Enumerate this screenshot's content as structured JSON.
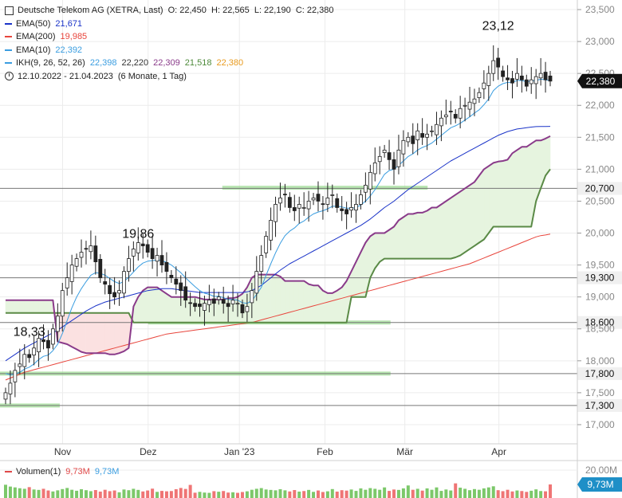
{
  "header": {
    "title": "Deutsche Telekom AG (XETRA, Last)",
    "ohlc": "O: 22,450  H: 22,565  L: 22,190  C: 22,380",
    "indicators": [
      {
        "label": "EMA(50)",
        "values": [
          "21,671"
        ],
        "color": "#1a33c8"
      },
      {
        "label": "EMA(200)",
        "values": [
          "19,985"
        ],
        "color": "#e8453c"
      },
      {
        "label": "EMA(10)",
        "values": [
          "22,392"
        ],
        "color": "#3a9de0"
      },
      {
        "label": "IKH(9, 26, 52, 26)",
        "values": [
          "22,398",
          "22,220",
          "22,309",
          "21,518",
          "22,380"
        ],
        "value_colors": [
          "#3a9de0",
          "#333333",
          "#8a3b8a",
          "#4d8a3a",
          "#e89a1e"
        ],
        "color": "#3a9de0"
      }
    ],
    "period": "12.10.2022 - 21.04.2023",
    "period_note": "(6 Monate, 1 Tag)"
  },
  "volume": {
    "label": "Volumen(1)",
    "values": [
      "9,73M",
      "9,73M"
    ],
    "axis_label": "20,00M",
    "badge": "9,73M",
    "badge_color": "#1e8fc7"
  },
  "chart_data": {
    "type": "candlestick",
    "x_range": [
      "12.10.2022",
      "21.04.2023"
    ],
    "ylim": [
      16.7,
      23.65
    ],
    "y_ticks": [
      "17,000",
      "17,500",
      "18,000",
      "18,500",
      "19,000",
      "19,500",
      "20,000",
      "20,500",
      "21,000",
      "21,500",
      "22,000",
      "22,500",
      "23,000",
      "23,500"
    ],
    "x_ticks": [
      {
        "label": "Nov",
        "date": "2022-11-01"
      },
      {
        "label": "Dez",
        "date": "2022-12-01"
      },
      {
        "label": "Jan '23",
        "date": "2023-01-02"
      },
      {
        "label": "Feb",
        "date": "2023-02-01"
      },
      {
        "label": "Mär",
        "date": "2023-03-01"
      },
      {
        "label": "Apr",
        "date": "2023-04-03"
      }
    ],
    "horizontal_levels": [
      {
        "value": 20.7,
        "label": "20,700"
      },
      {
        "value": 19.3,
        "label": "19,300"
      },
      {
        "value": 18.6,
        "label": "18,600"
      },
      {
        "value": 17.8,
        "label": "17,800"
      },
      {
        "value": 17.3,
        "label": "17,300"
      }
    ],
    "support_zones": [
      {
        "value": 20.71,
        "from": "2022-12-27",
        "to": "2023-03-09"
      },
      {
        "value": 18.6,
        "from": "2022-12-01",
        "to": "2023-02-24"
      },
      {
        "value": 17.8,
        "from": "2022-10-12",
        "to": "2023-02-24"
      },
      {
        "value": 17.3,
        "from": "2022-10-12",
        "to": "2022-10-31"
      }
    ],
    "annotations": [
      {
        "text": "23,12",
        "value": 23.12
      },
      {
        "text": "19,86",
        "value": 19.86
      },
      {
        "text": "18,33",
        "value": 18.33
      }
    ],
    "last_price": {
      "value": 22.38,
      "label": "22,380"
    },
    "series": [
      {
        "name": "Kurs",
        "type": "candlestick",
        "close": [
          17.5,
          17.65,
          17.85,
          17.95,
          18.1,
          18.05,
          18.2,
          18.35,
          18.3,
          18.2,
          18.5,
          18.7,
          19.1,
          19.3,
          19.5,
          19.6,
          19.7,
          19.75,
          19.8,
          19.55,
          19.3,
          19.2,
          19.05,
          19.0,
          19.1,
          19.4,
          19.6,
          19.75,
          19.85,
          19.8,
          19.7,
          19.6,
          19.65,
          19.5,
          19.4,
          19.3,
          19.2,
          19.1,
          18.95,
          18.9,
          18.85,
          18.85,
          18.9,
          18.95,
          18.9,
          19.0,
          18.9,
          18.85,
          18.95,
          18.9,
          18.75,
          18.85,
          19.1,
          19.4,
          19.65,
          19.95,
          20.2,
          20.45,
          20.55,
          20.6,
          20.4,
          20.35,
          20.45,
          20.4,
          20.5,
          20.55,
          20.5,
          20.45,
          20.55,
          20.6,
          20.4,
          20.35,
          20.3,
          20.4,
          20.45,
          20.6,
          20.75,
          20.95,
          21.1,
          21.2,
          21.3,
          21.15,
          21.0,
          21.3,
          21.45,
          21.5,
          21.4,
          21.6,
          21.5,
          21.55,
          21.6,
          21.7,
          21.8,
          21.85,
          21.9,
          21.8,
          21.95,
          22.0,
          22.05,
          22.1,
          22.2,
          22.35,
          22.5,
          22.7,
          22.6,
          22.45,
          22.4,
          22.35,
          22.5,
          22.4,
          22.3,
          22.4,
          22.45,
          22.5,
          22.4,
          22.38
        ]
      },
      {
        "name": "EMA(10)",
        "values": [
          17.8,
          17.78,
          17.79,
          17.82,
          17.87,
          17.9,
          17.95,
          18.02,
          18.07,
          18.09,
          18.16,
          18.26,
          18.43,
          18.63,
          18.83,
          19.0,
          19.13,
          19.24,
          19.34,
          19.38,
          19.37,
          19.34,
          19.29,
          19.24,
          19.21,
          19.24,
          19.31,
          19.39,
          19.47,
          19.53,
          19.56,
          19.57,
          19.58,
          19.57,
          19.54,
          19.5,
          19.44,
          19.38,
          19.3,
          19.23,
          19.16,
          19.1,
          19.06,
          19.04,
          19.01,
          19.01,
          18.99,
          18.96,
          18.96,
          18.95,
          18.91,
          18.9,
          18.94,
          19.04,
          19.15,
          19.34,
          19.52,
          19.69,
          19.84,
          19.96,
          20.03,
          20.08,
          20.15,
          20.19,
          20.25,
          20.3,
          20.33,
          20.35,
          20.38,
          20.42,
          20.42,
          20.41,
          20.39,
          20.39,
          20.4,
          20.44,
          20.5,
          20.58,
          20.68,
          20.8,
          20.92,
          20.98,
          21.0,
          21.06,
          21.13,
          21.2,
          21.24,
          21.3,
          21.34,
          21.37,
          21.41,
          21.47,
          21.53,
          21.59,
          21.65,
          21.68,
          21.72,
          21.77,
          21.82,
          21.88,
          21.93,
          22.01,
          22.1,
          22.23,
          22.3,
          22.34,
          22.36,
          22.36,
          22.39,
          22.39,
          22.37,
          22.38,
          22.39,
          22.41,
          22.4,
          22.39
        ]
      },
      {
        "name": "EMA(50)",
        "values": [
          18.0,
          18.05,
          18.1,
          18.15,
          18.2,
          18.24,
          18.28,
          18.32,
          18.36,
          18.4,
          18.44,
          18.48,
          18.53,
          18.58,
          18.63,
          18.68,
          18.73,
          18.78,
          18.82,
          18.86,
          18.89,
          18.92,
          18.94,
          18.96,
          18.98,
          19.0,
          19.02,
          19.04,
          19.06,
          19.08,
          19.1,
          19.11,
          19.12,
          19.13,
          19.13,
          19.13,
          19.12,
          19.11,
          19.1,
          19.09,
          19.08,
          19.07,
          19.07,
          19.07,
          19.07,
          19.07,
          19.07,
          19.07,
          19.07,
          19.07,
          19.07,
          19.08,
          19.1,
          19.14,
          19.18,
          19.24,
          19.3,
          19.36,
          19.42,
          19.47,
          19.52,
          19.56,
          19.6,
          19.64,
          19.68,
          19.72,
          19.76,
          19.8,
          19.84,
          19.88,
          19.92,
          19.96,
          20.0,
          20.04,
          20.08,
          20.12,
          20.17,
          20.22,
          20.28,
          20.34,
          20.4,
          20.45,
          20.5,
          20.56,
          20.62,
          20.68,
          20.73,
          20.78,
          20.83,
          20.88,
          20.93,
          20.98,
          21.03,
          21.08,
          21.13,
          21.17,
          21.21,
          21.25,
          21.29,
          21.33,
          21.37,
          21.41,
          21.45,
          21.49,
          21.53,
          21.56,
          21.59,
          21.61,
          21.63,
          21.64,
          21.65,
          21.66,
          21.667,
          21.668,
          21.67,
          21.671
        ]
      },
      {
        "name": "EMA(200)",
        "values": [
          17.7,
          17.73,
          17.76,
          17.79,
          17.82,
          17.84,
          17.86,
          17.88,
          17.9,
          17.92,
          17.94,
          17.96,
          17.98,
          18.0,
          18.02,
          18.04,
          18.06,
          18.08,
          18.1,
          18.12,
          18.14,
          18.16,
          18.18,
          18.2,
          18.22,
          18.24,
          18.26,
          18.28,
          18.3,
          18.32,
          18.34,
          18.36,
          18.38,
          18.4,
          18.42,
          18.43,
          18.44,
          18.45,
          18.46,
          18.47,
          18.48,
          18.49,
          18.5,
          18.51,
          18.52,
          18.53,
          18.54,
          18.55,
          18.56,
          18.57,
          18.58,
          18.59,
          18.6,
          18.62,
          18.64,
          18.66,
          18.68,
          18.7,
          18.72,
          18.74,
          18.76,
          18.78,
          18.8,
          18.82,
          18.84,
          18.86,
          18.88,
          18.9,
          18.92,
          18.94,
          18.96,
          18.98,
          19.0,
          19.02,
          19.04,
          19.06,
          19.08,
          19.1,
          19.12,
          19.14,
          19.16,
          19.18,
          19.2,
          19.22,
          19.24,
          19.26,
          19.28,
          19.3,
          19.32,
          19.34,
          19.36,
          19.38,
          19.4,
          19.42,
          19.44,
          19.46,
          19.48,
          19.5,
          19.52,
          19.55,
          19.58,
          19.61,
          19.64,
          19.67,
          19.7,
          19.73,
          19.76,
          19.79,
          19.82,
          19.85,
          19.88,
          19.91,
          19.94,
          19.96,
          19.97,
          19.985
        ]
      },
      {
        "name": "Senkou Span A",
        "values": [
          18.95,
          18.95,
          18.95,
          18.95,
          18.95,
          18.95,
          18.95,
          18.95,
          18.95,
          18.95,
          18.95,
          18.3,
          18.28,
          18.26,
          18.22,
          18.18,
          18.14,
          18.12,
          18.12,
          18.12,
          18.12,
          18.12,
          18.1,
          18.1,
          18.12,
          18.15,
          18.2,
          18.85,
          19.0,
          19.1,
          19.15,
          19.15,
          19.15,
          19.1,
          19.05,
          19.0,
          19.0,
          19.0,
          19.0,
          19.0,
          19.0,
          18.98,
          18.96,
          18.96,
          18.96,
          18.96,
          18.96,
          18.98,
          18.98,
          19.0,
          19.05,
          19.15,
          19.3,
          19.35,
          19.35,
          19.35,
          19.35,
          19.35,
          19.32,
          19.25,
          19.25,
          19.25,
          19.25,
          19.25,
          19.2,
          19.18,
          19.18,
          19.1,
          19.06,
          19.06,
          19.1,
          19.15,
          19.25,
          19.4,
          19.55,
          19.7,
          19.85,
          19.95,
          20.0,
          20.0,
          20.0,
          20.05,
          20.1,
          20.2,
          20.25,
          20.3,
          20.3,
          20.32,
          20.32,
          20.35,
          20.4,
          20.4,
          20.45,
          20.5,
          20.55,
          20.6,
          20.65,
          20.7,
          20.75,
          20.8,
          20.9,
          21.0,
          21.05,
          21.1,
          21.12,
          21.13,
          21.15,
          21.25,
          21.3,
          21.35,
          21.35,
          21.4,
          21.45,
          21.45,
          21.48,
          21.518
        ]
      },
      {
        "name": "Senkou Span B",
        "values": [
          18.75,
          18.75,
          18.75,
          18.75,
          18.75,
          18.75,
          18.75,
          18.75,
          18.75,
          18.75,
          18.75,
          18.75,
          18.75,
          18.75,
          18.75,
          18.75,
          18.75,
          18.75,
          18.75,
          18.75,
          18.75,
          18.75,
          18.75,
          18.75,
          18.75,
          18.75,
          18.75,
          18.6,
          18.6,
          18.6,
          18.6,
          18.6,
          18.6,
          18.6,
          18.6,
          18.6,
          18.6,
          18.6,
          18.6,
          18.6,
          18.6,
          18.6,
          18.6,
          18.6,
          18.6,
          18.6,
          18.6,
          18.6,
          18.6,
          18.6,
          18.6,
          18.6,
          18.6,
          18.6,
          18.6,
          18.6,
          18.6,
          18.6,
          18.6,
          18.6,
          18.6,
          18.6,
          18.6,
          18.6,
          18.6,
          18.6,
          18.6,
          18.6,
          18.6,
          18.6,
          18.6,
          18.6,
          18.6,
          19.0,
          19.0,
          19.0,
          19.0,
          19.3,
          19.45,
          19.55,
          19.6,
          19.6,
          19.6,
          19.6,
          19.6,
          19.6,
          19.6,
          19.6,
          19.6,
          19.6,
          19.6,
          19.6,
          19.6,
          19.6,
          19.6,
          19.62,
          19.65,
          19.7,
          19.75,
          19.8,
          19.85,
          19.9,
          20.0,
          20.1,
          20.1,
          20.1,
          20.1,
          20.1,
          20.1,
          20.1,
          20.1,
          20.1,
          20.5,
          20.7,
          20.9,
          21.0
        ]
      },
      {
        "name": "Volumen(1)",
        "values": [
          9.5,
          8.2,
          7.6,
          7.0,
          6.6,
          7.8,
          6.1,
          5.8,
          6.6,
          5.4,
          4.7,
          5.5,
          6.4,
          7.2,
          5.9,
          5.2,
          6.3,
          5.6,
          4.9,
          5.7,
          4.6,
          5.9,
          4.9,
          5.4,
          4.1,
          6.1,
          5.6,
          6.6,
          5.8,
          4.7,
          5.4,
          6.7,
          4.4,
          5.1,
          4.8,
          5.0,
          6.3,
          7.2,
          6.5,
          9.4,
          3.8,
          4.4,
          3.9,
          3.7,
          4.9,
          4.5,
          5.0,
          3.9,
          4.1,
          3.7,
          4.3,
          4.8,
          5.9,
          6.6,
          7.1,
          6.1,
          5.8,
          5.5,
          6.3,
          5.5,
          4.7,
          5.7,
          4.6,
          5.0,
          5.8,
          4.4,
          5.4,
          4.3,
          4.8,
          6.4,
          4.6,
          5.6,
          5.3,
          6.1,
          5.1,
          6.9,
          5.9,
          7.1,
          6.6,
          5.9,
          7.6,
          5.1,
          6.1,
          5.8,
          6.9,
          9.0,
          5.9,
          6.6,
          5.3,
          6.9,
          5.9,
          7.6,
          5.1,
          6.1,
          5.4,
          10.5,
          7.4,
          6.6,
          5.6,
          6.4,
          5.9,
          6.9,
          7.6,
          8.4,
          5.6,
          4.9,
          5.9,
          4.7,
          5.4,
          5.0,
          4.4,
          5.2,
          6.2,
          5.0,
          4.8,
          9.73
        ],
        "volume_axis_label": "20,00M"
      }
    ]
  }
}
